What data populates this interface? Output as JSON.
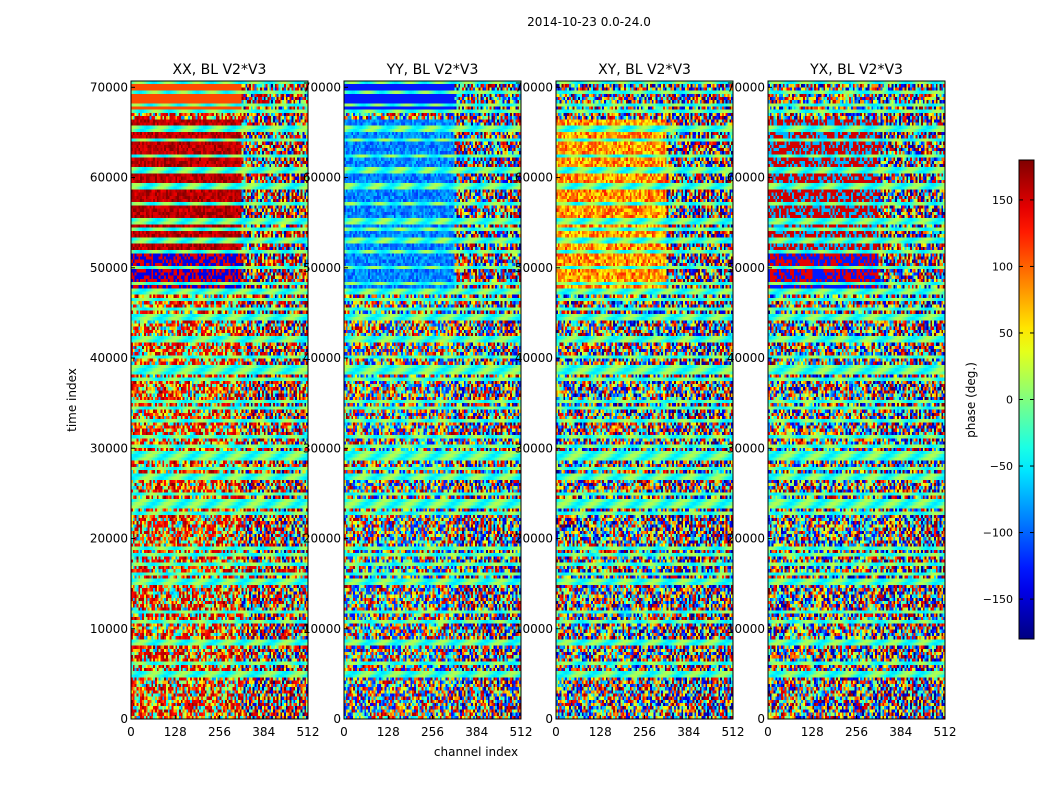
{
  "chart_data": {
    "type": "heatmap",
    "suptitle": "2014-10-23 0.0-24.0",
    "xlabel": "channel index",
    "ylabel": "time index",
    "xlim": [
      0,
      512
    ],
    "ylim": [
      0,
      70700
    ],
    "xticks": [
      "0",
      "128",
      "256",
      "384",
      "512"
    ],
    "xtick_values": [
      0,
      128,
      256,
      384,
      512
    ],
    "yticks": [
      "0",
      "10000",
      "20000",
      "30000",
      "40000",
      "50000",
      "60000",
      "70000"
    ],
    "ytick_values": [
      0,
      10000,
      20000,
      30000,
      40000,
      50000,
      60000,
      70000
    ],
    "panels": [
      {
        "title": "XX, BL V2*V3",
        "pattern": "xx"
      },
      {
        "title": "YY, BL V2*V3",
        "pattern": "yy"
      },
      {
        "title": "XY, BL V2*V3",
        "pattern": "xy"
      },
      {
        "title": "YX, BL V2*V3",
        "pattern": "yx"
      }
    ],
    "colorbar": {
      "label": "phase (deg.)",
      "range": [
        -180,
        180
      ],
      "ticks": [
        "150",
        "100",
        "50",
        "0",
        "−50",
        "−100",
        "−150"
      ],
      "tick_values": [
        150,
        100,
        50,
        0,
        -50,
        -100,
        -150
      ],
      "colormap": "jet"
    }
  }
}
